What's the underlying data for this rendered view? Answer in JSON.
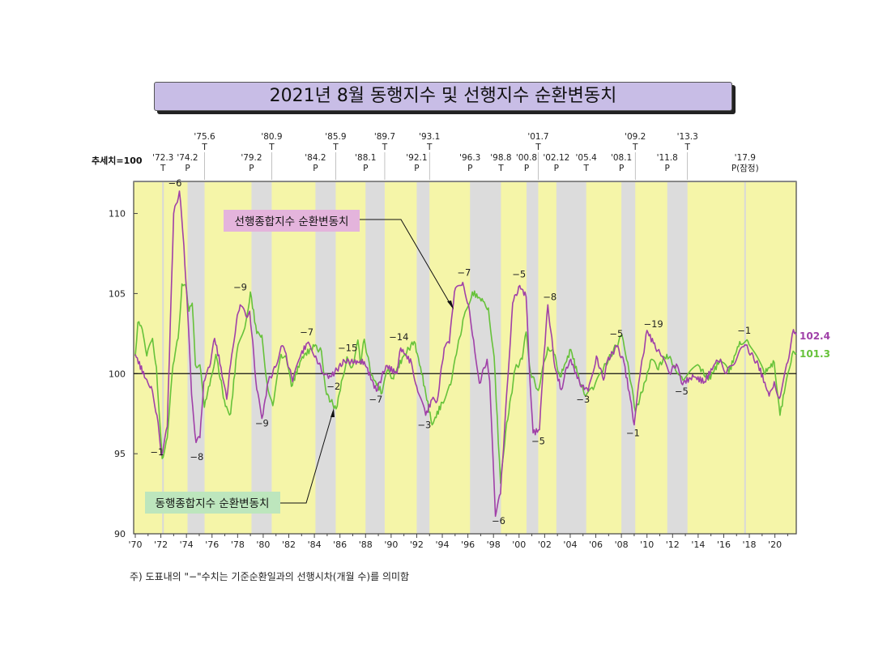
{
  "title": "2021년 8월 동행지수 및 선행지수 순환변동치",
  "footnote": "주) 도표내의 \"−\"수치는 기준순환일과의 선행시차(개월 수)를 의미함",
  "chart_data": {
    "type": "line",
    "ylabel": "추세치=100",
    "ylim": [
      90,
      112
    ],
    "yticks": [
      "110",
      "105",
      "100",
      "95",
      "90"
    ],
    "ytick_values": [
      110,
      105,
      100,
      95,
      90
    ],
    "xlim": [
      1970,
      2021.67
    ],
    "xticks": [
      "'70",
      "'72",
      "'74",
      "'76",
      "'78",
      "'80",
      "'82",
      "'84",
      "'86",
      "'88",
      "'90",
      "'92",
      "'94",
      "'96",
      "'98",
      "'00",
      "'02",
      "'04",
      "'06",
      "'08",
      "'10",
      "'12",
      "'14",
      "'16",
      "'18",
      "'20"
    ],
    "reference_line": 100,
    "colors": {
      "leading": "#a040a8",
      "coincident": "#66c23a",
      "expansion": "#f5f5a8",
      "contraction": "#dcdcdc"
    },
    "cycle_markers": [
      {
        "date": "'72.3",
        "type": "T"
      },
      {
        "date": "'74.2",
        "type": "P"
      },
      {
        "date": "'75.6",
        "type": "T"
      },
      {
        "date": "'79.2",
        "type": "P"
      },
      {
        "date": "'80.9",
        "type": "T"
      },
      {
        "date": "'84.2",
        "type": "P"
      },
      {
        "date": "'85.9",
        "type": "T"
      },
      {
        "date": "'88.1",
        "type": "P"
      },
      {
        "date": "'89.7",
        "type": "T"
      },
      {
        "date": "'92.1",
        "type": "P"
      },
      {
        "date": "'93.1",
        "type": "T"
      },
      {
        "date": "'96.3",
        "type": "P"
      },
      {
        "date": "'98.8",
        "type": "T"
      },
      {
        "date": "'00.8",
        "type": "P"
      },
      {
        "date": "'01.7",
        "type": "T"
      },
      {
        "date": "'02.12",
        "type": "P"
      },
      {
        "date": "'05.4",
        "type": "T"
      },
      {
        "date": "'08.1",
        "type": "P"
      },
      {
        "date": "'09.2",
        "type": "T"
      },
      {
        "date": "'11.8",
        "type": "P"
      },
      {
        "date": "'13.3",
        "type": "T"
      },
      {
        "date": "'17.9",
        "type": "P(잠정)"
      }
    ],
    "series": [
      {
        "name": "선행종합지수 순환변동치",
        "last_value": "102.4",
        "points": [
          [
            1970.0,
            101.2
          ],
          [
            1970.8,
            99.7
          ],
          [
            1971.25,
            99.2
          ],
          [
            1971.7,
            97.4
          ],
          [
            1972.05,
            94.9
          ],
          [
            1972.5,
            96.7
          ],
          [
            1973.0,
            110.0
          ],
          [
            1973.2,
            110.6
          ],
          [
            1973.45,
            111.4
          ],
          [
            1973.8,
            108.0
          ],
          [
            1974.1,
            103.8
          ],
          [
            1974.4,
            98.7
          ],
          [
            1974.75,
            95.7
          ],
          [
            1975.05,
            96.0
          ],
          [
            1975.35,
            99.5
          ],
          [
            1975.8,
            100.4
          ],
          [
            1976.2,
            102.2
          ],
          [
            1976.7,
            100.4
          ],
          [
            1977.15,
            98.4
          ],
          [
            1977.45,
            100.6
          ],
          [
            1977.9,
            103.2
          ],
          [
            1978.2,
            104.3
          ],
          [
            1978.65,
            103.6
          ],
          [
            1978.95,
            103.9
          ],
          [
            1979.5,
            99.0
          ],
          [
            1979.9,
            97.2
          ],
          [
            1980.4,
            99.5
          ],
          [
            1980.95,
            100.4
          ],
          [
            1981.4,
            101.7
          ],
          [
            1981.7,
            101.4
          ],
          [
            1982.3,
            99.5
          ],
          [
            1982.95,
            101.2
          ],
          [
            1983.45,
            101.9
          ],
          [
            1984.1,
            101.1
          ],
          [
            1984.65,
            100.05
          ],
          [
            1985.1,
            99.7
          ],
          [
            1985.6,
            100.1
          ],
          [
            1986.35,
            100.8
          ],
          [
            1987.1,
            100.7
          ],
          [
            1987.9,
            100.75
          ],
          [
            1988.85,
            98.9
          ],
          [
            1989.6,
            100.5
          ],
          [
            1990.45,
            100.0
          ],
          [
            1990.75,
            101.6
          ],
          [
            1991.6,
            100.65
          ],
          [
            1992.0,
            99.2
          ],
          [
            1992.7,
            97.4
          ],
          [
            1993.2,
            98.4
          ],
          [
            1993.6,
            98.3
          ],
          [
            1994.15,
            101.6
          ],
          [
            1994.55,
            101.9
          ],
          [
            1994.95,
            105.1
          ],
          [
            1995.6,
            105.7
          ],
          [
            1996.05,
            104.3
          ],
          [
            1996.45,
            102.1
          ],
          [
            1996.9,
            99.4
          ],
          [
            1997.5,
            100.9
          ],
          [
            1997.7,
            99.55
          ],
          [
            1998.15,
            91.1
          ],
          [
            1998.55,
            92.5
          ],
          [
            1999.1,
            99.5
          ],
          [
            1999.5,
            104.4
          ],
          [
            2000.05,
            105.5
          ],
          [
            2000.55,
            104.8
          ],
          [
            2000.8,
            100.4
          ],
          [
            2001.1,
            96.3
          ],
          [
            2001.6,
            96.5
          ],
          [
            2001.95,
            101.2
          ],
          [
            2002.25,
            104.3
          ],
          [
            2002.8,
            100.4
          ],
          [
            2003.3,
            99.0
          ],
          [
            2003.7,
            100.4
          ],
          [
            2004.05,
            100.9
          ],
          [
            2004.55,
            99.7
          ],
          [
            2005.1,
            99.0
          ],
          [
            2005.4,
            98.9
          ],
          [
            2006.05,
            101.1
          ],
          [
            2006.6,
            99.6
          ],
          [
            2006.9,
            100.8
          ],
          [
            2007.65,
            101.7
          ],
          [
            2008.2,
            100.7
          ],
          [
            2008.7,
            98.4
          ],
          [
            2009.0,
            96.8
          ],
          [
            2009.45,
            99.9
          ],
          [
            2010.0,
            102.7
          ],
          [
            2010.5,
            101.9
          ],
          [
            2011.1,
            101.1
          ],
          [
            2011.75,
            100.05
          ],
          [
            2012.3,
            100.6
          ],
          [
            2012.7,
            99.4
          ],
          [
            2013.65,
            99.8
          ],
          [
            2014.5,
            99.5
          ],
          [
            2015.35,
            100.65
          ],
          [
            2015.75,
            100.9
          ],
          [
            2016.2,
            100.0
          ],
          [
            2017.65,
            101.8
          ],
          [
            2018.7,
            100.55
          ],
          [
            2019.55,
            98.6
          ],
          [
            2019.95,
            99.5
          ],
          [
            2020.35,
            98.45
          ],
          [
            2021.0,
            100.7
          ],
          [
            2021.45,
            102.75
          ],
          [
            2021.67,
            102.4
          ]
        ]
      },
      {
        "name": "동행종합지수 순환변동치",
        "last_value": "101.3",
        "points": [
          [
            1970.0,
            101.1
          ],
          [
            1970.2,
            103.2
          ],
          [
            1970.45,
            103.0
          ],
          [
            1970.9,
            101.1
          ],
          [
            1971.35,
            102.2
          ],
          [
            1971.65,
            100.4
          ],
          [
            1972.1,
            94.7
          ],
          [
            1972.5,
            96.0
          ],
          [
            1972.95,
            100.55
          ],
          [
            1973.35,
            102.2
          ],
          [
            1973.65,
            105.6
          ],
          [
            1974.0,
            105.3
          ],
          [
            1974.2,
            103.9
          ],
          [
            1974.45,
            104.4
          ],
          [
            1974.7,
            100.55
          ],
          [
            1975.05,
            100.55
          ],
          [
            1975.4,
            97.9
          ],
          [
            1975.9,
            99.7
          ],
          [
            1976.3,
            101.2
          ],
          [
            1977.05,
            97.95
          ],
          [
            1977.45,
            97.5
          ],
          [
            1977.95,
            101.4
          ],
          [
            1978.65,
            103.25
          ],
          [
            1979.0,
            105.1
          ],
          [
            1979.5,
            102.5
          ],
          [
            1979.9,
            102.4
          ],
          [
            1980.3,
            99.4
          ],
          [
            1980.75,
            98.0
          ],
          [
            1981.4,
            101.2
          ],
          [
            1981.8,
            101.0
          ],
          [
            1982.2,
            99.2
          ],
          [
            1983.05,
            101.05
          ],
          [
            1984.0,
            101.7
          ],
          [
            1984.55,
            101.4
          ],
          [
            1984.95,
            98.7
          ],
          [
            1985.7,
            97.8
          ],
          [
            1986.2,
            99.7
          ],
          [
            1986.55,
            101.05
          ],
          [
            1986.95,
            100.4
          ],
          [
            1987.4,
            102.1
          ],
          [
            1987.6,
            100.6
          ],
          [
            1987.9,
            102.15
          ],
          [
            1988.45,
            99.9
          ],
          [
            1989.3,
            98.8
          ],
          [
            1989.7,
            100.2
          ],
          [
            1990.1,
            99.7
          ],
          [
            1991.05,
            101.2
          ],
          [
            1991.8,
            102.0
          ],
          [
            1992.3,
            100.4
          ],
          [
            1993.2,
            96.8
          ],
          [
            1994.0,
            98.2
          ],
          [
            1994.65,
            99.3
          ],
          [
            1995.1,
            101.2
          ],
          [
            1995.7,
            103.6
          ],
          [
            1996.35,
            105.1
          ],
          [
            1997.2,
            104.5
          ],
          [
            1997.6,
            104.1
          ],
          [
            1998.05,
            101.05
          ],
          [
            1998.55,
            93.15
          ],
          [
            1998.95,
            96.35
          ],
          [
            1999.7,
            100.3
          ],
          [
            2000.25,
            100.9
          ],
          [
            2000.55,
            102.6
          ],
          [
            2000.9,
            100.05
          ],
          [
            2001.5,
            98.95
          ],
          [
            2001.85,
            100.4
          ],
          [
            2002.25,
            101.65
          ],
          [
            2002.65,
            101.5
          ],
          [
            2003.2,
            99.8
          ],
          [
            2004.05,
            101.5
          ],
          [
            2004.55,
            100.05
          ],
          [
            2005.1,
            98.7
          ],
          [
            2005.8,
            99.0
          ],
          [
            2006.45,
            100.1
          ],
          [
            2007.0,
            100.9
          ],
          [
            2008.05,
            102.4
          ],
          [
            2008.5,
            100.7
          ],
          [
            2009.1,
            97.6
          ],
          [
            2009.85,
            99.5
          ],
          [
            2010.35,
            100.9
          ],
          [
            2010.8,
            100.3
          ],
          [
            2011.55,
            101.2
          ],
          [
            2012.15,
            100.5
          ],
          [
            2012.8,
            99.6
          ],
          [
            2014.05,
            100.5
          ],
          [
            2014.8,
            99.6
          ],
          [
            2015.75,
            100.9
          ],
          [
            2016.4,
            100.05
          ],
          [
            2017.25,
            102.0
          ],
          [
            2017.9,
            102.0
          ],
          [
            2019.15,
            100.05
          ],
          [
            2019.95,
            100.7
          ],
          [
            2020.4,
            97.4
          ],
          [
            2020.9,
            99.6
          ],
          [
            2021.35,
            101.2
          ],
          [
            2021.67,
            101.3
          ]
        ]
      }
    ],
    "annotations": [
      {
        "text": "−6",
        "x": 1973.1,
        "y": 111.7
      },
      {
        "text": "−1",
        "x": 1971.7,
        "y": 94.9
      },
      {
        "text": "−8",
        "x": 1974.8,
        "y": 94.6
      },
      {
        "text": "−9",
        "x": 1978.2,
        "y": 105.2
      },
      {
        "text": "−9",
        "x": 1979.9,
        "y": 96.7
      },
      {
        "text": "−7",
        "x": 1983.4,
        "y": 102.4
      },
      {
        "text": "−2",
        "x": 1985.5,
        "y": 99.0
      },
      {
        "text": "−15",
        "x": 1986.6,
        "y": 101.4
      },
      {
        "text": "−7",
        "x": 1988.8,
        "y": 98.2
      },
      {
        "text": "−14",
        "x": 1990.6,
        "y": 102.1
      },
      {
        "text": "−3",
        "x": 1992.6,
        "y": 96.6
      },
      {
        "text": "−7",
        "x": 1995.7,
        "y": 106.1
      },
      {
        "text": "−6",
        "x": 1998.4,
        "y": 90.6
      },
      {
        "text": "−5",
        "x": 2000.0,
        "y": 106.0
      },
      {
        "text": "−5",
        "x": 2001.5,
        "y": 95.6
      },
      {
        "text": "−8",
        "x": 2002.4,
        "y": 104.6
      },
      {
        "text": "−3",
        "x": 2005.0,
        "y": 98.2
      },
      {
        "text": "−5",
        "x": 2007.6,
        "y": 102.3
      },
      {
        "text": "−1",
        "x": 2008.9,
        "y": 96.1
      },
      {
        "text": "−19",
        "x": 2010.5,
        "y": 102.9
      },
      {
        "text": "−5",
        "x": 2012.7,
        "y": 98.7
      },
      {
        "text": "−1",
        "x": 2017.6,
        "y": 102.5
      }
    ]
  }
}
